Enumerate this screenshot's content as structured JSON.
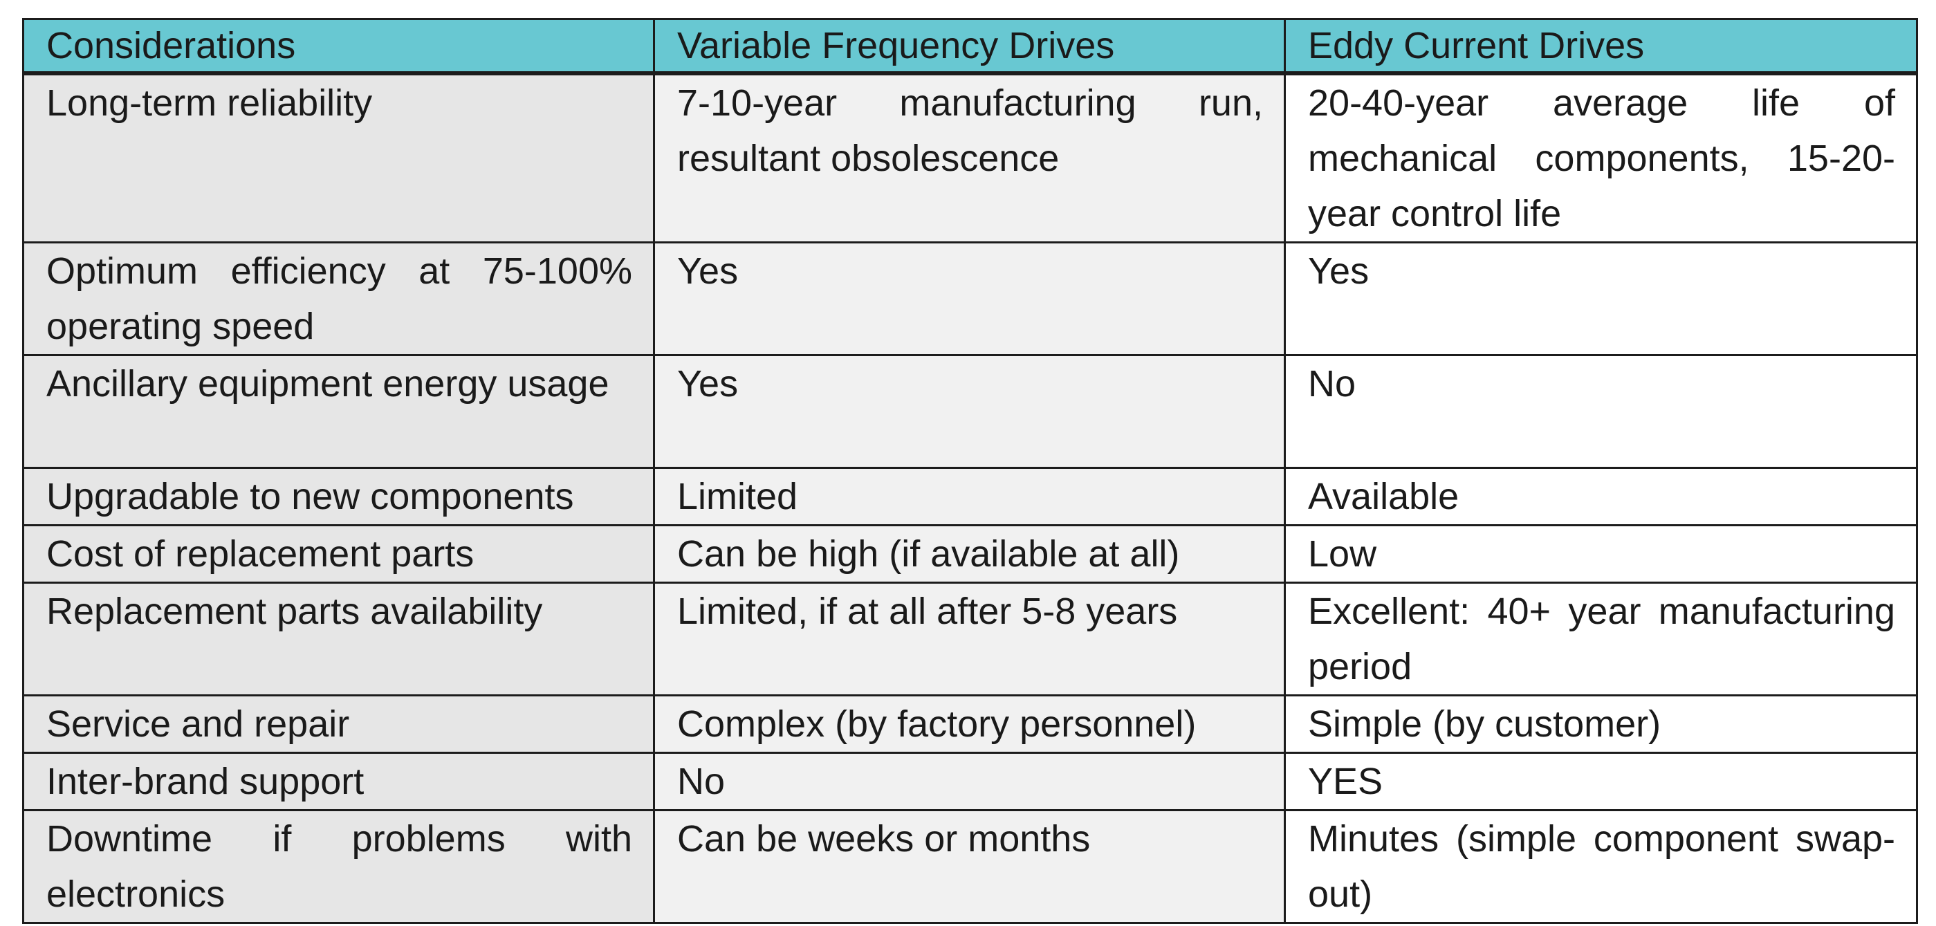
{
  "colors": {
    "header_bg": "#68c8d2",
    "col1_bg": "#e6e6e6",
    "col2_bg": "#f1f1f1",
    "col3_bg": "#ffffff",
    "border": "#1c1c1c"
  },
  "table": {
    "headers": [
      "Considerations",
      "Variable Frequency Drives",
      "Eddy Current Drives"
    ],
    "rows": [
      [
        "Long-term reliability",
        "7-10-year manufacturing run, resultant obsolescence",
        "20-40-year average life of mechanical components, 15-20-year control life"
      ],
      [
        "Optimum efficiency at 75-100% operating speed",
        "Yes",
        "Yes"
      ],
      [
        "Ancillary equipment energy usage",
        "Yes",
        "No"
      ],
      [
        "Upgradable to new components",
        "Limited",
        "Available"
      ],
      [
        "Cost of replacement parts",
        "Can be high (if available at all)",
        "Low"
      ],
      [
        "Replacement parts availability",
        "Limited, if at all after 5-8 years",
        "Excellent: 40+ year manufacturing period"
      ],
      [
        "Service and repair",
        "Complex (by factory personnel)",
        "Simple (by customer)"
      ],
      [
        "Inter-brand support",
        "No",
        "YES"
      ],
      [
        "Downtime if problems with electronics",
        "Can be weeks or months",
        "Minutes (simple component swap-out)"
      ]
    ]
  }
}
